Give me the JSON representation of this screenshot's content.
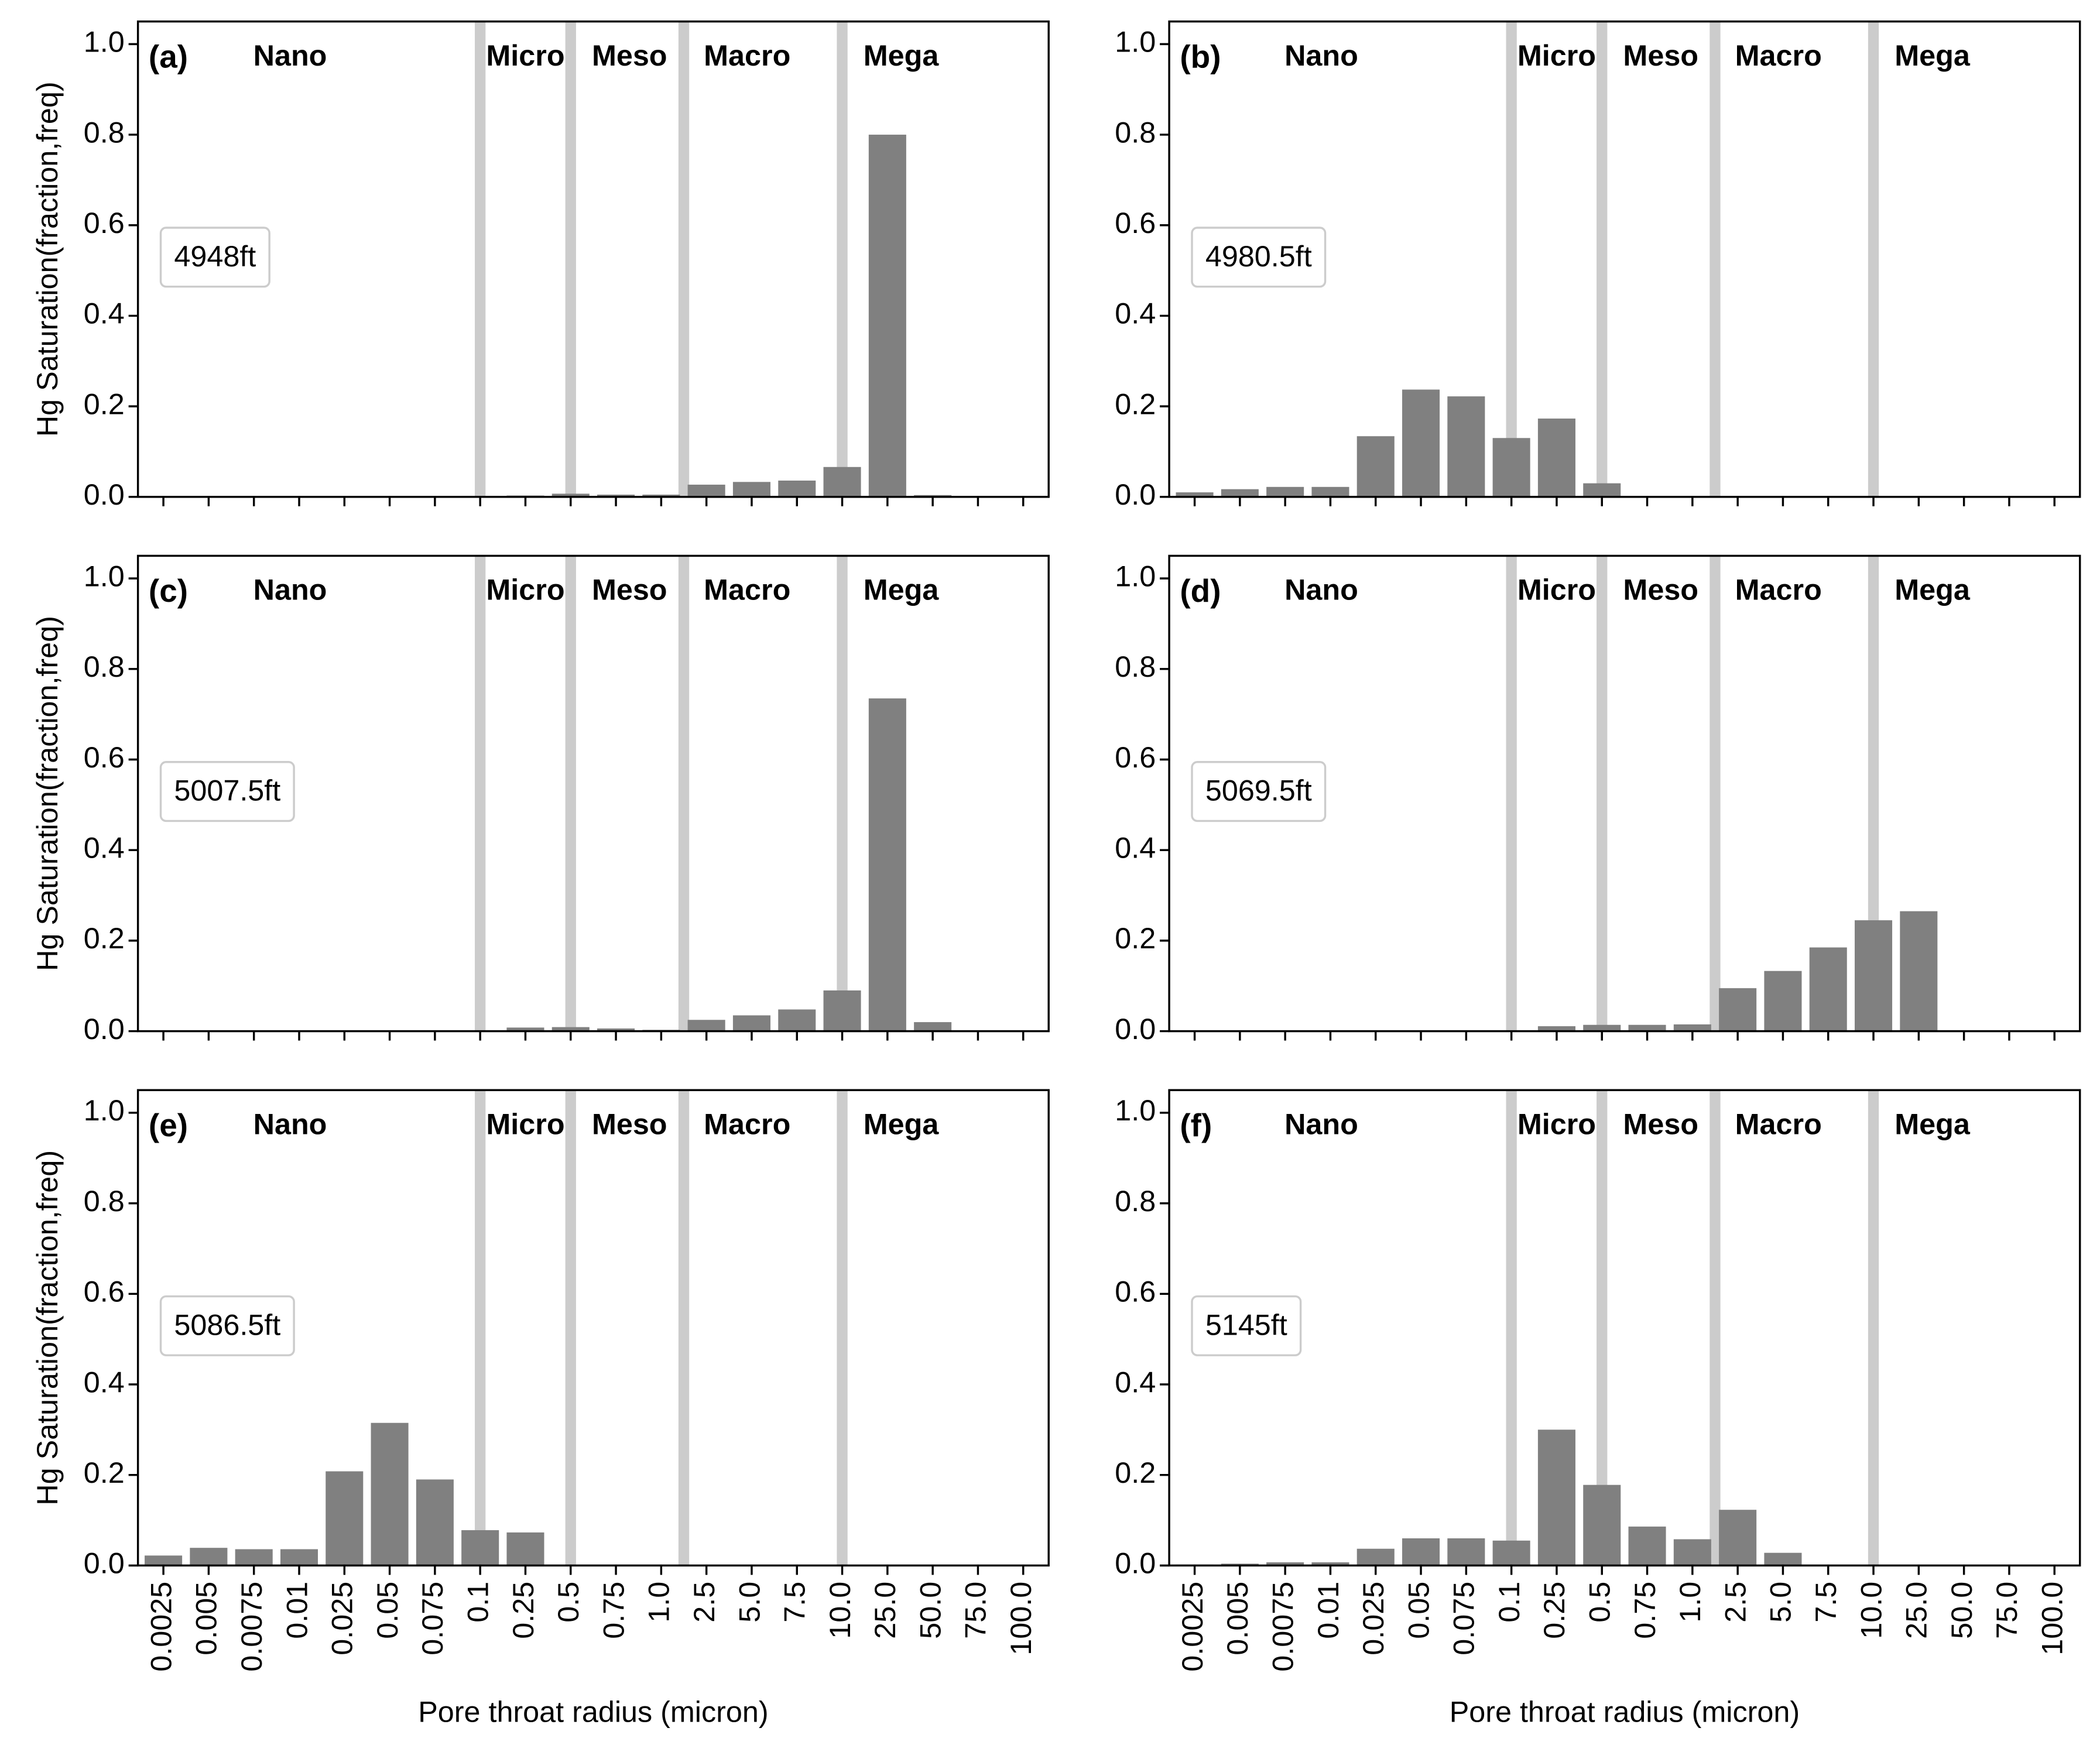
{
  "chart_data": [
    {
      "type": "bar",
      "panel_label": "(a)",
      "annotation": "4948ft",
      "y_label": "Hg Saturation(fraction,freq)",
      "categories": [
        "0.0025",
        "0.005",
        "0.0075",
        "0.01",
        "0.025",
        "0.05",
        "0.075",
        "0.1",
        "0.25",
        "0.5",
        "0.75",
        "1.0",
        "2.5",
        "5.0",
        "7.5",
        "10.0",
        "25.0",
        "50.0",
        "75.0",
        "100.0"
      ],
      "values": [
        0,
        0,
        0,
        0,
        0,
        0,
        0,
        0.002,
        0.003,
        0.007,
        0.005,
        0.005,
        0.027,
        0.033,
        0.036,
        0.066,
        0.8,
        0.004,
        0,
        0
      ],
      "color": "#808080",
      "regions": [
        "Nano",
        "Micro",
        "Meso",
        "Macro",
        "Mega"
      ],
      "region_boundaries": [
        7,
        9,
        11.5,
        15
      ],
      "boundary_color": "#cccccc",
      "ylim": [
        0,
        1.05
      ],
      "yticks": [
        {
          "value": 0,
          "label": "0.0"
        },
        0.2,
        0.4,
        0.6,
        0.8,
        {
          "value": 1,
          "label": "1.0"
        }
      ]
    },
    {
      "type": "bar",
      "panel_label": "(b)",
      "annotation": "4980.5ft",
      "categories": [
        "0.0025",
        "0.005",
        "0.0075",
        "0.01",
        "0.025",
        "0.05",
        "0.075",
        "0.1",
        "0.25",
        "0.5",
        "0.75",
        "1.0",
        "2.5",
        "5.0",
        "7.5",
        "10.0",
        "25.0",
        "50.0",
        "75.0",
        "100.0"
      ],
      "values": [
        0.01,
        0.017,
        0.022,
        0.022,
        0.134,
        0.237,
        0.222,
        0.13,
        0.173,
        0.03,
        0,
        0,
        0,
        0,
        0,
        0,
        0,
        0,
        0,
        0
      ],
      "color": "#808080",
      "regions": [
        "Nano",
        "Micro",
        "Meso",
        "Macro",
        "Mega"
      ],
      "region_boundaries": [
        7,
        9,
        11.5,
        15
      ],
      "boundary_color": "#cccccc",
      "ylim": [
        0,
        1.05
      ],
      "yticks": [
        {
          "value": 0,
          "label": "0.0"
        },
        0.2,
        0.4,
        0.6,
        0.8,
        {
          "value": 1,
          "label": "1.0"
        }
      ]
    },
    {
      "type": "bar",
      "panel_label": "(c)",
      "annotation": "5007.5ft",
      "y_label": "Hg Saturation(fraction,freq)",
      "categories": [
        "0.0025",
        "0.005",
        "0.0075",
        "0.01",
        "0.025",
        "0.05",
        "0.075",
        "0.1",
        "0.25",
        "0.5",
        "0.75",
        "1.0",
        "2.5",
        "5.0",
        "7.5",
        "10.0",
        "25.0",
        "50.0",
        "75.0",
        "100.0"
      ],
      "values": [
        0,
        0,
        0,
        0,
        0.002,
        0.002,
        0.002,
        0,
        0.008,
        0.009,
        0.006,
        0.003,
        0.025,
        0.035,
        0.048,
        0.09,
        0.735,
        0.02,
        0,
        0
      ],
      "color": "#808080",
      "regions": [
        "Nano",
        "Micro",
        "Meso",
        "Macro",
        "Mega"
      ],
      "region_boundaries": [
        7,
        9,
        11.5,
        15
      ],
      "boundary_color": "#cccccc",
      "ylim": [
        0,
        1.05
      ],
      "yticks": [
        {
          "value": 0,
          "label": "0.0"
        },
        0.2,
        0.4,
        0.6,
        0.8,
        {
          "value": 1,
          "label": "1.0"
        }
      ]
    },
    {
      "type": "bar",
      "panel_label": "(d)",
      "annotation": "5069.5ft",
      "categories": [
        "0.0025",
        "0.005",
        "0.0075",
        "0.01",
        "0.025",
        "0.05",
        "0.075",
        "0.1",
        "0.25",
        "0.5",
        "0.75",
        "1.0",
        "2.5",
        "5.0",
        "7.5",
        "10.0",
        "25.0",
        "50.0",
        "75.0",
        "100.0"
      ],
      "values": [
        0,
        0,
        0,
        0,
        0.002,
        0.002,
        0.001,
        0,
        0.011,
        0.014,
        0.014,
        0.015,
        0.095,
        0.133,
        0.185,
        0.245,
        0.265,
        0,
        0,
        0
      ],
      "color": "#808080",
      "regions": [
        "Nano",
        "Micro",
        "Meso",
        "Macro",
        "Mega"
      ],
      "region_boundaries": [
        7,
        9,
        11.5,
        15
      ],
      "boundary_color": "#cccccc",
      "ylim": [
        0,
        1.05
      ],
      "yticks": [
        {
          "value": 0,
          "label": "0.0"
        },
        0.2,
        0.4,
        0.6,
        0.8,
        {
          "value": 1,
          "label": "1.0"
        }
      ]
    },
    {
      "type": "bar",
      "panel_label": "(e)",
      "annotation": "5086.5ft",
      "y_label": "Hg Saturation(fraction,freq)",
      "x_label": "Pore throat radius (micron)",
      "categories": [
        "0.0025",
        "0.005",
        "0.0075",
        "0.01",
        "0.025",
        "0.05",
        "0.075",
        "0.1",
        "0.25",
        "0.5",
        "0.75",
        "1.0",
        "2.5",
        "5.0",
        "7.5",
        "10.0",
        "25.0",
        "50.0",
        "75.0",
        "100.0"
      ],
      "values": [
        0.022,
        0.039,
        0.036,
        0.036,
        0.208,
        0.315,
        0.19,
        0.078,
        0.073,
        0,
        0,
        0,
        0,
        0,
        0,
        0,
        0,
        0,
        0,
        0
      ],
      "color": "#808080",
      "regions": [
        "Nano",
        "Micro",
        "Meso",
        "Macro",
        "Mega"
      ],
      "region_boundaries": [
        7,
        9,
        11.5,
        15
      ],
      "boundary_color": "#cccccc",
      "ylim": [
        0,
        1.05
      ],
      "yticks": [
        {
          "value": 0,
          "label": "0.0"
        },
        0.2,
        0.4,
        0.6,
        0.8,
        {
          "value": 1,
          "label": "1.0"
        }
      ]
    },
    {
      "type": "bar",
      "panel_label": "(f)",
      "annotation": "5145ft",
      "x_label": "Pore throat radius (micron)",
      "categories": [
        "0.0025",
        "0.005",
        "0.0075",
        "0.01",
        "0.025",
        "0.05",
        "0.075",
        "0.1",
        "0.25",
        "0.5",
        "0.75",
        "1.0",
        "2.5",
        "5.0",
        "7.5",
        "10.0",
        "25.0",
        "50.0",
        "75.0",
        "100.0"
      ],
      "values": [
        0.002,
        0.004,
        0.007,
        0.007,
        0.037,
        0.06,
        0.06,
        0.055,
        0.3,
        0.178,
        0.086,
        0.058,
        0.123,
        0.028,
        0,
        0,
        0,
        0,
        0,
        0
      ],
      "color": "#808080",
      "regions": [
        "Nano",
        "Micro",
        "Meso",
        "Macro",
        "Mega"
      ],
      "region_boundaries": [
        7,
        9,
        11.5,
        15
      ],
      "boundary_color": "#cccccc",
      "ylim": [
        0,
        1.05
      ],
      "yticks": [
        {
          "value": 0,
          "label": "0.0"
        },
        0.2,
        0.4,
        0.6,
        0.8,
        {
          "value": 1,
          "label": "1.0"
        }
      ]
    }
  ]
}
